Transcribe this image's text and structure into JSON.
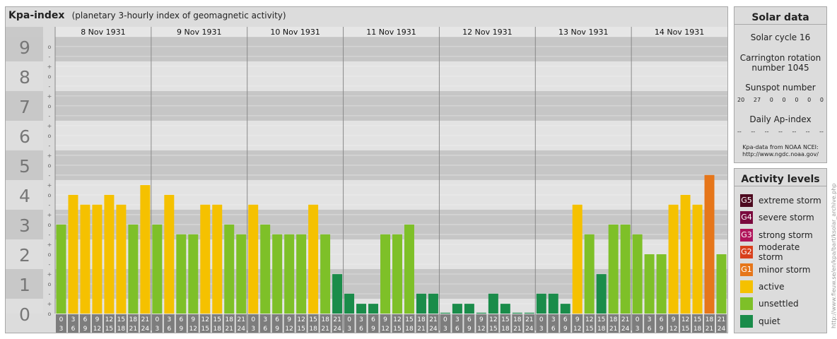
{
  "header": {
    "title": "Kpa-index",
    "subtitle": "(planetary 3-hourly index of geomagnetic activity)"
  },
  "chart_data": {
    "type": "bar",
    "y_axis_labels": [
      "0",
      "1",
      "2",
      "3",
      "4",
      "5",
      "6",
      "7",
      "8",
      "9"
    ],
    "sub_labels": [
      "-",
      "o",
      "+"
    ],
    "ylim": [
      0,
      9.33
    ],
    "days": [
      "8 Nov 1931",
      "9 Nov 1931",
      "10 Nov 1931",
      "11 Nov 1931",
      "12 Nov 1931",
      "13 Nov 1931",
      "14 Nov 1931"
    ],
    "interval_starts": [
      "0",
      "3",
      "6",
      "9",
      "12",
      "15",
      "18",
      "21"
    ],
    "interval_ends": [
      "3",
      "6",
      "9",
      "12",
      "15",
      "18",
      "21",
      "24"
    ],
    "values": [
      3.0,
      4.0,
      3.67,
      3.67,
      4.0,
      3.67,
      3.0,
      4.33,
      3.0,
      4.0,
      2.67,
      2.67,
      3.67,
      3.67,
      3.0,
      2.67,
      3.67,
      3.0,
      2.67,
      2.67,
      2.67,
      3.67,
      2.67,
      1.33,
      0.67,
      0.33,
      0.33,
      2.67,
      2.67,
      3.0,
      0.67,
      0.67,
      0.0,
      0.33,
      0.33,
      0.0,
      0.67,
      0.33,
      0.0,
      0.0,
      0.67,
      0.67,
      0.33,
      3.67,
      2.67,
      1.33,
      3.0,
      3.0,
      2.67,
      2.0,
      2.0,
      3.67,
      4.0,
      3.67,
      4.67,
      2.0
    ],
    "colors": {
      "quiet": "#1a8c4a",
      "unsettled": "#7ec028",
      "active": "#f5c100",
      "minor_storm": "#e6761a",
      "band_dark": "#c6c6c6",
      "band_light": "#e3e3e3",
      "axis_text": "#777777",
      "x_label_bg": "#7d7d7d"
    }
  },
  "solar": {
    "title": "Solar data",
    "cycle": "Solar cycle 16",
    "carrington_line1": "Carrington rotation",
    "carrington_line2": "number 1045",
    "sunspot_title": "Sunspot number",
    "sunspots": [
      "20",
      "27",
      "0",
      "0",
      "0",
      "0",
      "0"
    ],
    "ap_title": "Daily Ap-index",
    "ap_values": [
      "--",
      "--",
      "--",
      "--",
      "--",
      "--",
      "--"
    ],
    "source_line1": "Kpa-data from NOAA NCEI:",
    "source_line2": "http://www.ngdc.noaa.gov/"
  },
  "activity": {
    "title": "Activity levels",
    "items": [
      {
        "badge": "G5",
        "label": "extreme storm",
        "color": "#4d0a1f"
      },
      {
        "badge": "G4",
        "label": "severe storm",
        "color": "#7a0a3e"
      },
      {
        "badge": "G3",
        "label": "strong storm",
        "color": "#b0145a"
      },
      {
        "badge": "G2",
        "label": "moderate storm",
        "color": "#d8401c"
      },
      {
        "badge": "G1",
        "label": "minor storm",
        "color": "#e6761a"
      },
      {
        "badge": "",
        "label": "active",
        "color": "#f5c100"
      },
      {
        "badge": "",
        "label": "unsettled",
        "color": "#7ec028"
      },
      {
        "badge": "",
        "label": "quiet",
        "color": "#1a8c4a"
      }
    ]
  },
  "watermark": "http://www.fieuw.se/en/kpa/bart/ksolar_archive.php"
}
